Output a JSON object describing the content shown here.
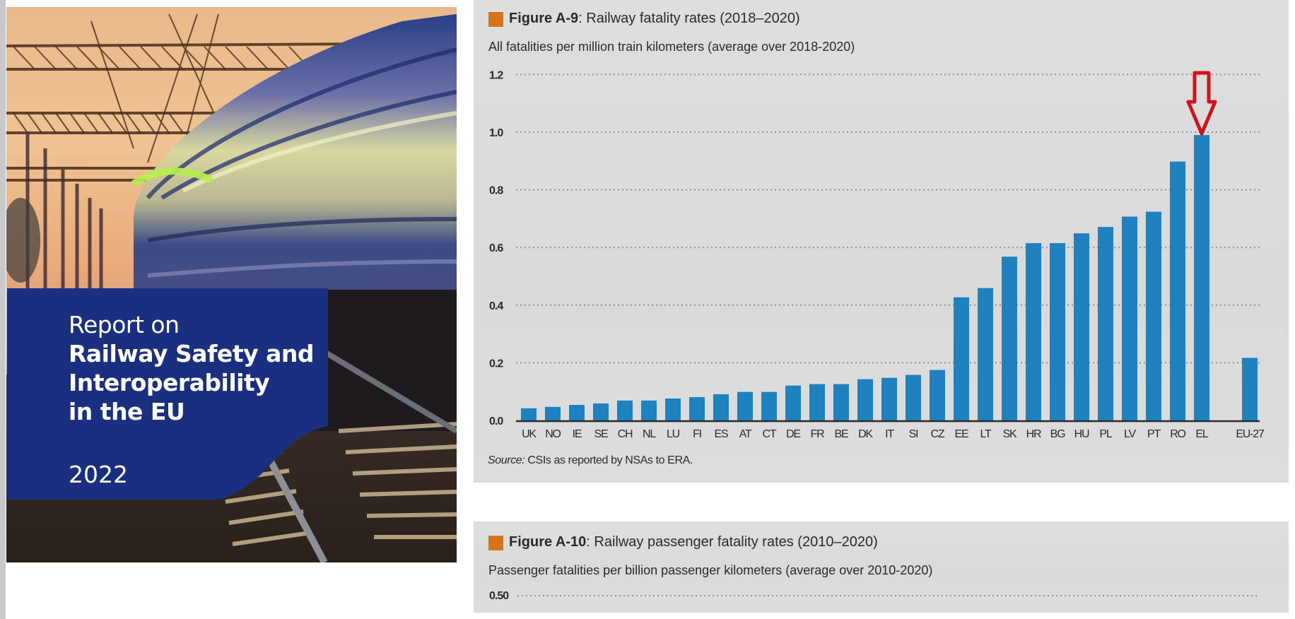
{
  "cover": {
    "pre_title": "Report on",
    "title_lines": [
      "Railway Safety and",
      "Interoperability",
      "in the EU"
    ],
    "year": "2022",
    "box_color": "#1b2f80"
  },
  "figure_a9": {
    "label": "Figure A-9",
    "title": ": Railway fatality rates (2018–2020)",
    "subtitle": "All fatalities per million train kilometers (average over 2018-2020)",
    "source_label": "Source:",
    "source_text": " CSIs as reported by NSAs to ERA.",
    "highlight": {
      "category": "EL",
      "marker": "red-down-arrow",
      "color": "#d0121b"
    }
  },
  "figure_a10": {
    "label": "Figure A-10",
    "title": ": Railway passenger fatality rates (2010–2020)",
    "subtitle": "Passenger fatalities per billion passenger kilometers (average over 2010-2020)",
    "first_tick": "0.50"
  },
  "colors": {
    "bar": "#1f82c0",
    "accent_square": "#d9731a",
    "grid": "#8f8f8f",
    "axis": "#2b2b2b"
  },
  "chart_data": [
    {
      "type": "bar",
      "title": "Figure A-9: Railway fatality rates (2018–2020)",
      "subtitle": "All fatalities per million train kilometers (average over 2018-2020)",
      "xlabel": "",
      "ylabel": "",
      "ylim": [
        0,
        1.2
      ],
      "yticks": [
        0.0,
        0.2,
        0.4,
        0.6,
        0.8,
        1.0,
        1.2
      ],
      "ytick_labels": [
        "0.0",
        "0.2",
        "0.4",
        "0.6",
        "0.8",
        "1.0",
        "1.2"
      ],
      "grid": true,
      "categories": [
        "UK",
        "NO",
        "IE",
        "SE",
        "CH",
        "NL",
        "LU",
        "FI",
        "ES",
        "AT",
        "CT",
        "DE",
        "FR",
        "BE",
        "DK",
        "IT",
        "SI",
        "CZ",
        "EE",
        "LT",
        "SK",
        "HR",
        "BG",
        "HU",
        "PL",
        "LV",
        "PT",
        "RO",
        "EL",
        "EU-27"
      ],
      "values": [
        0.042,
        0.047,
        0.054,
        0.059,
        0.069,
        0.069,
        0.076,
        0.081,
        0.091,
        0.099,
        0.099,
        0.121,
        0.126,
        0.126,
        0.143,
        0.148,
        0.158,
        0.175,
        0.427,
        0.459,
        0.568,
        0.615,
        0.615,
        0.649,
        0.671,
        0.707,
        0.724,
        0.898,
        0.99,
        0.217
      ],
      "gap_before": [
        "EU-27"
      ],
      "source": "Source: CSIs as reported by NSAs to ERA."
    },
    {
      "type": "bar",
      "title": "Figure A-10: Railway passenger fatality rates (2010–2020)",
      "subtitle": "Passenger fatalities per billion passenger kilometers (average over 2010-2020)",
      "ytick_labels": [
        "0.50"
      ],
      "grid": true,
      "categories": [],
      "values": [],
      "note": "chart cut off below first gridline"
    }
  ]
}
